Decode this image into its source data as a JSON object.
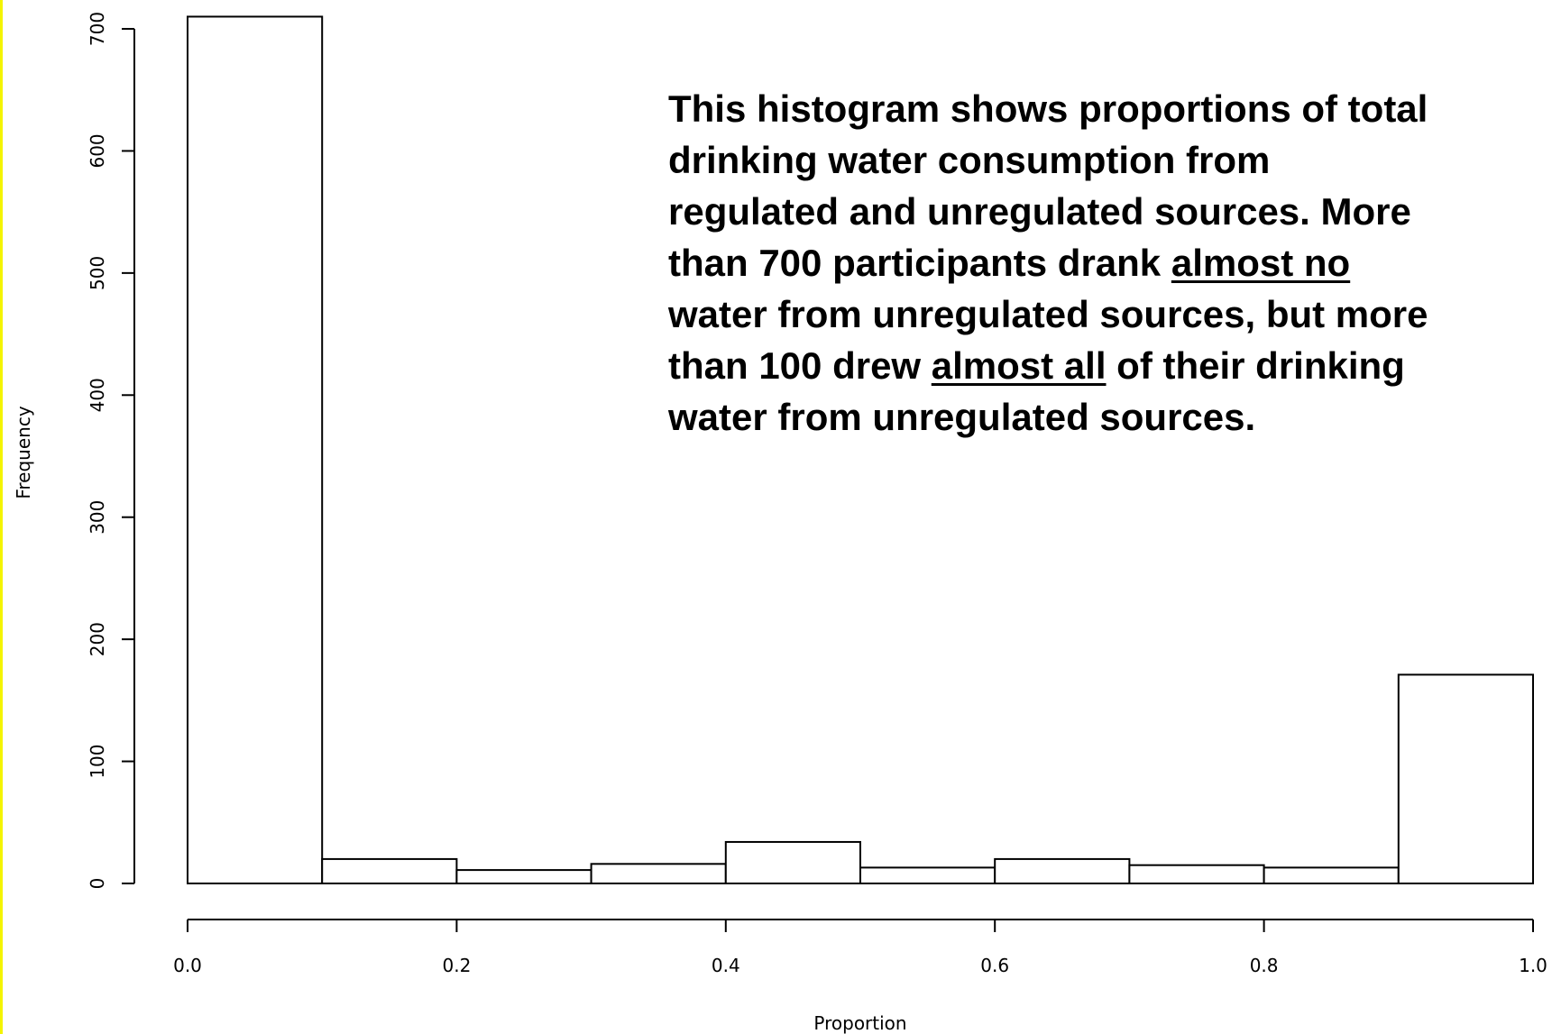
{
  "chart_data": {
    "type": "bar",
    "histogram": true,
    "bins": [
      {
        "start": 0.0,
        "end": 0.1,
        "value": 710
      },
      {
        "start": 0.1,
        "end": 0.2,
        "value": 20
      },
      {
        "start": 0.2,
        "end": 0.3,
        "value": 11
      },
      {
        "start": 0.3,
        "end": 0.4,
        "value": 16
      },
      {
        "start": 0.4,
        "end": 0.5,
        "value": 34
      },
      {
        "start": 0.5,
        "end": 0.6,
        "value": 13
      },
      {
        "start": 0.6,
        "end": 0.7,
        "value": 20
      },
      {
        "start": 0.7,
        "end": 0.8,
        "value": 15
      },
      {
        "start": 0.8,
        "end": 0.9,
        "value": 13
      },
      {
        "start": 0.9,
        "end": 1.0,
        "value": 171
      }
    ],
    "xlabel": "Proportion",
    "ylabel": "Frequency",
    "xlim": [
      0.0,
      1.0
    ],
    "ylim": [
      0,
      700
    ],
    "x_ticks": [
      "0.0",
      "0.2",
      "0.4",
      "0.6",
      "0.8",
      "1.0"
    ],
    "y_ticks": [
      "0",
      "100",
      "200",
      "300",
      "400",
      "500",
      "600",
      "700"
    ],
    "grid": false,
    "bar_fill": "#ffffff",
    "bar_stroke": "#000000"
  },
  "annotation": {
    "line1": "This histogram shows proportions of total",
    "line2": "drinking water consumption from",
    "line3": "regulated and unregulated sources. More",
    "line4_pre": "than 700 participants drank ",
    "line4_u": "almost no",
    "line5": "water from unregulated sources, but more",
    "line6_pre": "than 100 drew ",
    "line6_u": "almost all",
    "line6_post": " of their drinking",
    "line7": "water from unregulated sources."
  },
  "colors": {
    "frame_border": "#f4f400",
    "background": "#ffffff"
  }
}
